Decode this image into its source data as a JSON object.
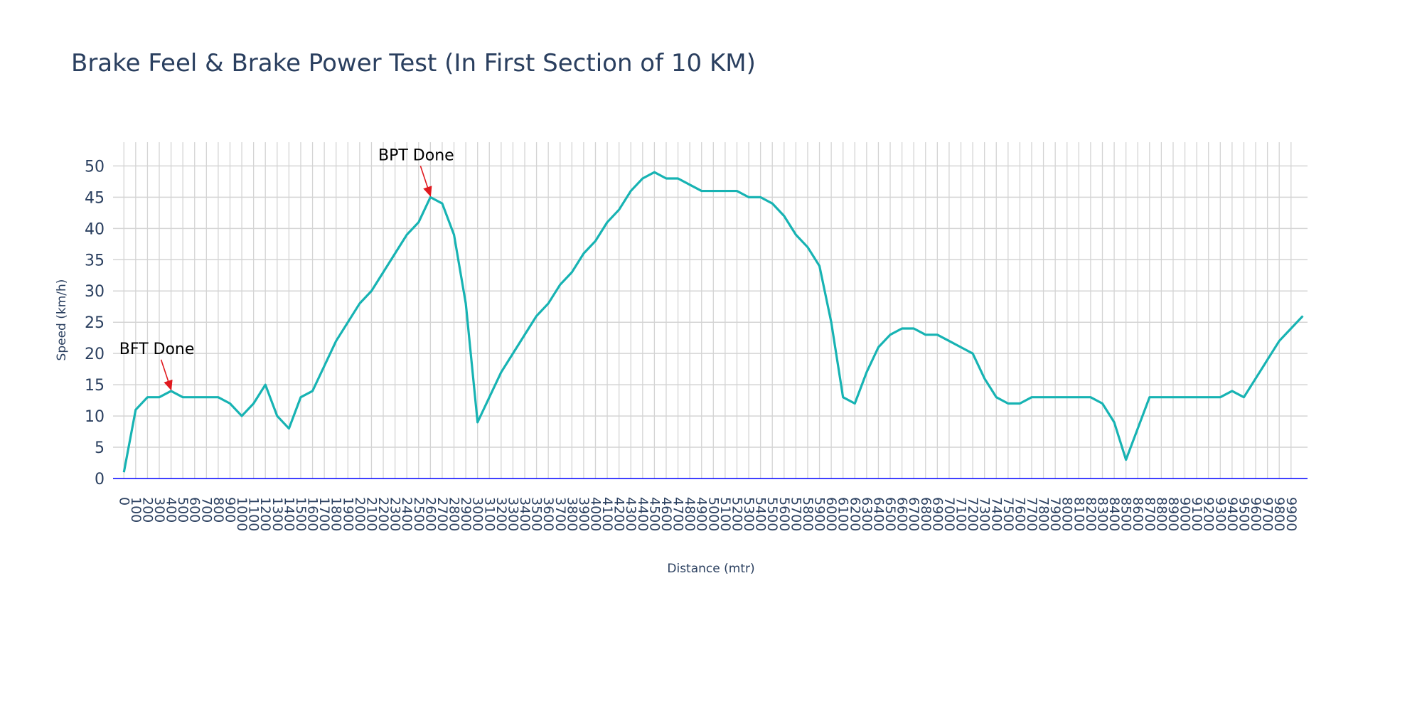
{
  "chart_data": {
    "type": "line",
    "title": "Brake Feel & Brake Power Test (In First Section of 10 KM)",
    "x_label": "Distance (mtr)",
    "y_label": "Speed (km/h)",
    "x": [
      0,
      100,
      200,
      300,
      400,
      500,
      600,
      700,
      800,
      900,
      1000,
      1100,
      1200,
      1300,
      1400,
      1500,
      1600,
      1700,
      1800,
      1900,
      2000,
      2100,
      2200,
      2300,
      2400,
      2500,
      2600,
      2700,
      2800,
      2900,
      3000,
      3100,
      3200,
      3300,
      3400,
      3500,
      3600,
      3700,
      3800,
      3900,
      4000,
      4100,
      4200,
      4300,
      4400,
      4500,
      4600,
      4700,
      4800,
      4900,
      5000,
      5100,
      5200,
      5300,
      5400,
      5500,
      5600,
      5700,
      5800,
      5900,
      6000,
      6100,
      6200,
      6300,
      6400,
      6500,
      6600,
      6700,
      6800,
      6900,
      7000,
      7100,
      7200,
      7300,
      7400,
      7500,
      7600,
      7700,
      7800,
      7900,
      8000,
      8100,
      8200,
      8300,
      8400,
      8500,
      8600,
      8700,
      8800,
      8900,
      9000,
      9100,
      9200,
      9300,
      9400,
      9500,
      9600,
      9700,
      9800,
      9900,
      10000
    ],
    "series": [
      {
        "name": "Speed",
        "color": "#17b3b3",
        "values": [
          1,
          11,
          13,
          13,
          14,
          13,
          13,
          13,
          13,
          12,
          10,
          12,
          15,
          10,
          8,
          13,
          14,
          18,
          22,
          25,
          28,
          30,
          33,
          36,
          39,
          41,
          45,
          44,
          39,
          28,
          9,
          13,
          17,
          20,
          23,
          26,
          28,
          31,
          33,
          36,
          38,
          41,
          43,
          46,
          48,
          49,
          48,
          48,
          47,
          46,
          46,
          46,
          46,
          45,
          45,
          44,
          42,
          39,
          37,
          34,
          25,
          13,
          12,
          17,
          21,
          23,
          24,
          24,
          23,
          23,
          22,
          21,
          20,
          16,
          13,
          12,
          12,
          13,
          13,
          13,
          13,
          13,
          13,
          12,
          9,
          3,
          8,
          13,
          13,
          13,
          13,
          13,
          13,
          13,
          14,
          13,
          16,
          19,
          22,
          24,
          26
        ]
      }
    ],
    "annotations": [
      {
        "text": "BFT Done",
        "x": 400,
        "y": 14
      },
      {
        "text": "BPT Done",
        "x": 2600,
        "y": 45
      }
    ],
    "xlim": [
      -92,
      10040
    ],
    "ylim": [
      0,
      53.8
    ],
    "xticks": [
      0,
      100,
      200,
      300,
      400,
      500,
      600,
      700,
      800,
      900,
      1000,
      1100,
      1200,
      1300,
      1400,
      1500,
      1600,
      1700,
      1800,
      1900,
      2000,
      2100,
      2200,
      2300,
      2400,
      2500,
      2600,
      2700,
      2800,
      2900,
      3000,
      3100,
      3200,
      3300,
      3400,
      3500,
      3600,
      3700,
      3800,
      3900,
      4000,
      4100,
      4200,
      4300,
      4400,
      4500,
      4600,
      4700,
      4800,
      4900,
      5000,
      5100,
      5200,
      5300,
      5400,
      5500,
      5600,
      5700,
      5800,
      5900,
      6000,
      6100,
      6200,
      6300,
      6400,
      6500,
      6600,
      6700,
      6800,
      6900,
      7000,
      7100,
      7200,
      7300,
      7400,
      7500,
      7600,
      7700,
      7800,
      7900,
      8000,
      8100,
      8200,
      8300,
      8400,
      8500,
      8600,
      8700,
      8800,
      8900,
      9000,
      9100,
      9200,
      9300,
      9400,
      9500,
      9600,
      9700,
      9800,
      9900
    ],
    "yticks": [
      0,
      5,
      10,
      15,
      20,
      25,
      30,
      35,
      40,
      45,
      50
    ],
    "grid": true
  }
}
